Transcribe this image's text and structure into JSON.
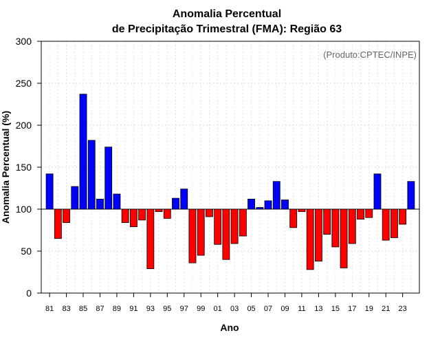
{
  "chart_data": {
    "type": "bar",
    "title_line1": "Anomalia Percentual",
    "title_line2": "de Precipitação Trimestral (FMA): Região 63",
    "xlabel": "Ano",
    "ylabel": "Anomalia Percentual (%)",
    "credit": "(Produto:CPTEC/INPE)",
    "ylim": [
      0,
      300
    ],
    "yticks": [
      0,
      50,
      100,
      150,
      200,
      250,
      300
    ],
    "baseline": 100,
    "grid": true,
    "above_color": "#0000ff",
    "below_color": "#ff0000",
    "categories": [
      "81",
      "82",
      "83",
      "84",
      "85",
      "86",
      "87",
      "88",
      "89",
      "90",
      "91",
      "92",
      "93",
      "94",
      "95",
      "96",
      "97",
      "98",
      "99",
      "00",
      "01",
      "02",
      "03",
      "04",
      "05",
      "06",
      "07",
      "08",
      "09",
      "10",
      "11",
      "12",
      "13",
      "14",
      "15",
      "16",
      "17",
      "18",
      "19",
      "20",
      "21",
      "22",
      "23",
      "24"
    ],
    "tick_labels": [
      "81",
      "83",
      "85",
      "87",
      "89",
      "91",
      "93",
      "95",
      "97",
      "99",
      "01",
      "03",
      "05",
      "07",
      "09",
      "11",
      "13",
      "15",
      "17",
      "19",
      "21",
      "23"
    ],
    "values": [
      142,
      65,
      84,
      127,
      237,
      182,
      112,
      174,
      118,
      84,
      79,
      87,
      29,
      97,
      89,
      113,
      124,
      36,
      45,
      91,
      58,
      40,
      59,
      68,
      112,
      102,
      110,
      133,
      111,
      78,
      97,
      28,
      38,
      70,
      55,
      30,
      59,
      88,
      90,
      142,
      63,
      66,
      82,
      133
    ]
  }
}
